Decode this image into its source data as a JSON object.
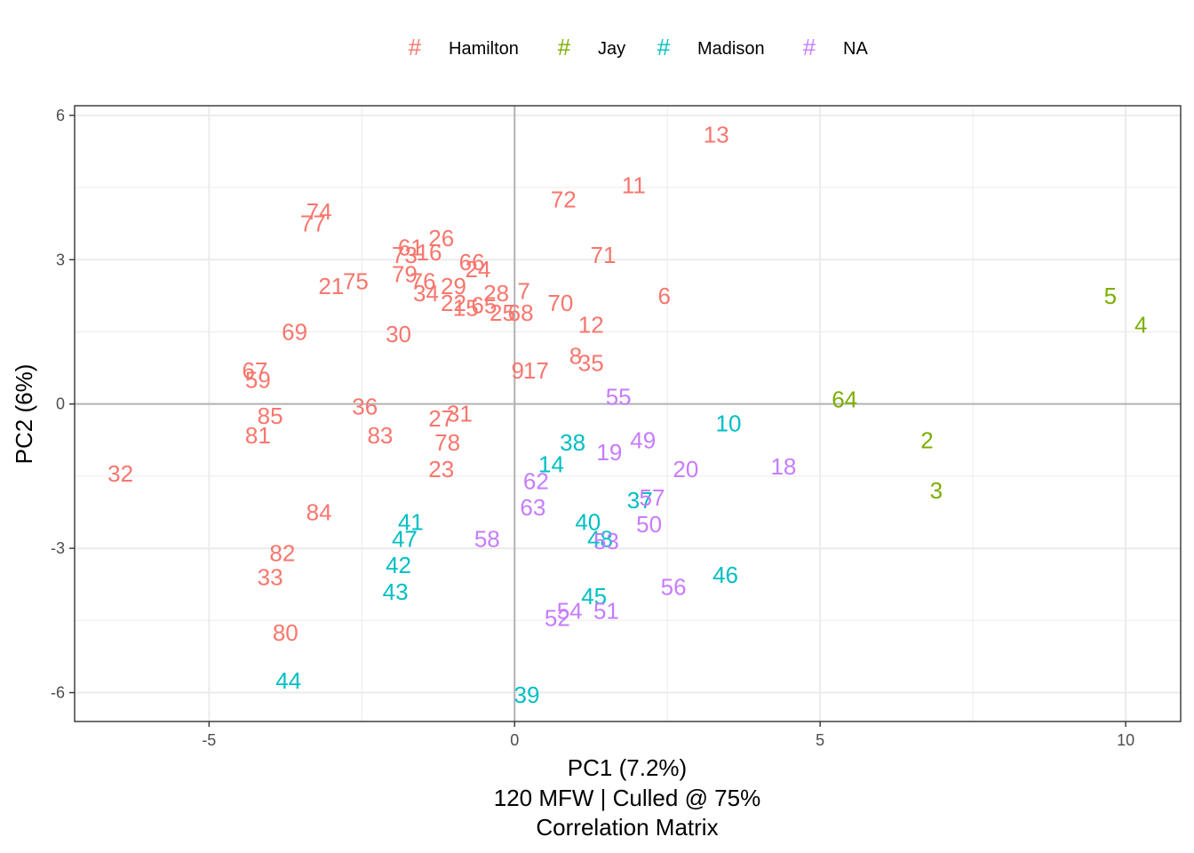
{
  "chart_data": {
    "type": "scatter",
    "xlabel": "PC1 (7.2%)",
    "subtitle_lines": [
      "120 MFW | Culled @ 75%",
      "Correlation Matrix"
    ],
    "ylabel": "PC2 (6%)",
    "xlim": [
      -7.2,
      10.9
    ],
    "ylim": [
      -6.6,
      6.2
    ],
    "x_ticks": [
      -5,
      0,
      5,
      10
    ],
    "x_tick_labels": [
      "-5",
      "0",
      "5",
      "10"
    ],
    "y_ticks": [
      -6,
      -3,
      0,
      3,
      6
    ],
    "y_tick_labels": [
      "-6",
      "-3",
      "0",
      "3",
      "6"
    ],
    "grid": true,
    "zero_lines": true,
    "legend": {
      "position": "top",
      "key_glyph": "#",
      "items": [
        {
          "name": "Hamilton",
          "color": "#F8766D"
        },
        {
          "name": "Jay",
          "color": "#7CAE00"
        },
        {
          "name": "Madison",
          "color": "#00BFC4"
        },
        {
          "name": "NA",
          "color": "#C77CFF"
        }
      ]
    },
    "series": [
      {
        "name": "Hamilton",
        "color": "#F8766D",
        "points": [
          {
            "label": "13",
            "x": 3.3,
            "y": 5.6
          },
          {
            "label": "11",
            "x": 1.95,
            "y": 4.55
          },
          {
            "label": "72",
            "x": 0.8,
            "y": 4.25
          },
          {
            "label": "74",
            "x": -3.2,
            "y": 4.0
          },
          {
            "label": "77",
            "x": -3.3,
            "y": 3.75
          },
          {
            "label": "61",
            "x": -1.7,
            "y": 3.25
          },
          {
            "label": "26",
            "x": -1.2,
            "y": 3.45
          },
          {
            "label": "73",
            "x": -1.8,
            "y": 3.1
          },
          {
            "label": "16",
            "x": -1.4,
            "y": 3.15
          },
          {
            "label": "71",
            "x": 1.45,
            "y": 3.1
          },
          {
            "label": "66",
            "x": -0.7,
            "y": 2.95
          },
          {
            "label": "24",
            "x": -0.6,
            "y": 2.8
          },
          {
            "label": "79",
            "x": -1.8,
            "y": 2.7
          },
          {
            "label": "75",
            "x": -2.6,
            "y": 2.55
          },
          {
            "label": "21",
            "x": -3.0,
            "y": 2.45
          },
          {
            "label": "76",
            "x": -1.5,
            "y": 2.55
          },
          {
            "label": "34",
            "x": -1.45,
            "y": 2.3
          },
          {
            "label": "29",
            "x": -1.0,
            "y": 2.45
          },
          {
            "label": "28",
            "x": -0.3,
            "y": 2.3
          },
          {
            "label": "7",
            "x": 0.15,
            "y": 2.35
          },
          {
            "label": "6",
            "x": 2.45,
            "y": 2.25
          },
          {
            "label": "22",
            "x": -1.0,
            "y": 2.1
          },
          {
            "label": "15",
            "x": -0.8,
            "y": 2.0
          },
          {
            "label": "65",
            "x": -0.5,
            "y": 2.05
          },
          {
            "label": "25",
            "x": -0.2,
            "y": 1.9
          },
          {
            "label": "68",
            "x": 0.1,
            "y": 1.9
          },
          {
            "label": "70",
            "x": 0.75,
            "y": 2.1
          },
          {
            "label": "12",
            "x": 1.25,
            "y": 1.65
          },
          {
            "label": "69",
            "x": -3.6,
            "y": 1.5
          },
          {
            "label": "30",
            "x": -1.9,
            "y": 1.45
          },
          {
            "label": "8",
            "x": 1.0,
            "y": 1.0
          },
          {
            "label": "35",
            "x": 1.25,
            "y": 0.85
          },
          {
            "label": "9",
            "x": 0.05,
            "y": 0.7
          },
          {
            "label": "17",
            "x": 0.35,
            "y": 0.7
          },
          {
            "label": "67",
            "x": -4.25,
            "y": 0.7
          },
          {
            "label": "59",
            "x": -4.2,
            "y": 0.5
          },
          {
            "label": "36",
            "x": -2.45,
            "y": -0.05
          },
          {
            "label": "31",
            "x": -0.9,
            "y": -0.2
          },
          {
            "label": "27",
            "x": -1.2,
            "y": -0.3
          },
          {
            "label": "85",
            "x": -4.0,
            "y": -0.25
          },
          {
            "label": "81",
            "x": -4.2,
            "y": -0.65
          },
          {
            "label": "83",
            "x": -2.2,
            "y": -0.65
          },
          {
            "label": "78",
            "x": -1.1,
            "y": -0.8
          },
          {
            "label": "23",
            "x": -1.2,
            "y": -1.35
          },
          {
            "label": "32",
            "x": -6.45,
            "y": -1.45
          },
          {
            "label": "84",
            "x": -3.2,
            "y": -2.25
          },
          {
            "label": "82",
            "x": -3.8,
            "y": -3.1
          },
          {
            "label": "33",
            "x": -4.0,
            "y": -3.6
          },
          {
            "label": "80",
            "x": -3.75,
            "y": -4.75
          }
        ]
      },
      {
        "name": "Jay",
        "color": "#7CAE00",
        "points": [
          {
            "label": "5",
            "x": 9.75,
            "y": 2.25
          },
          {
            "label": "4",
            "x": 10.25,
            "y": 1.65
          },
          {
            "label": "64",
            "x": 5.4,
            "y": 0.1
          },
          {
            "label": "2",
            "x": 6.75,
            "y": -0.75
          },
          {
            "label": "3",
            "x": 6.9,
            "y": -1.8
          }
        ]
      },
      {
        "name": "Madison",
        "color": "#00BFC4",
        "points": [
          {
            "label": "10",
            "x": 3.5,
            "y": -0.4
          },
          {
            "label": "38",
            "x": 0.95,
            "y": -0.8
          },
          {
            "label": "14",
            "x": 0.6,
            "y": -1.25
          },
          {
            "label": "37",
            "x": 2.05,
            "y": -2.0
          },
          {
            "label": "41",
            "x": -1.7,
            "y": -2.45
          },
          {
            "label": "47",
            "x": -1.8,
            "y": -2.8
          },
          {
            "label": "40",
            "x": 1.2,
            "y": -2.45
          },
          {
            "label": "48",
            "x": 1.4,
            "y": -2.8
          },
          {
            "label": "42",
            "x": -1.9,
            "y": -3.35
          },
          {
            "label": "46",
            "x": 3.45,
            "y": -3.55
          },
          {
            "label": "43",
            "x": -1.95,
            "y": -3.9
          },
          {
            "label": "45",
            "x": 1.3,
            "y": -4.0
          },
          {
            "label": "44",
            "x": -3.7,
            "y": -5.75
          },
          {
            "label": "39",
            "x": 0.2,
            "y": -6.05
          }
        ]
      },
      {
        "name": "NA",
        "color": "#C77CFF",
        "points": [
          {
            "label": "55",
            "x": 1.7,
            "y": 0.15
          },
          {
            "label": "19",
            "x": 1.55,
            "y": -1.0
          },
          {
            "label": "49",
            "x": 2.1,
            "y": -0.75
          },
          {
            "label": "20",
            "x": 2.8,
            "y": -1.35
          },
          {
            "label": "18",
            "x": 4.4,
            "y": -1.3
          },
          {
            "label": "62",
            "x": 0.35,
            "y": -1.6
          },
          {
            "label": "63",
            "x": 0.3,
            "y": -2.15
          },
          {
            "label": "57",
            "x": 2.25,
            "y": -1.95
          },
          {
            "label": "50",
            "x": 2.2,
            "y": -2.5
          },
          {
            "label": "58",
            "x": -0.45,
            "y": -2.8
          },
          {
            "label": "53",
            "x": 1.5,
            "y": -2.85
          },
          {
            "label": "56",
            "x": 2.6,
            "y": -3.8
          },
          {
            "label": "54",
            "x": 0.9,
            "y": -4.3
          },
          {
            "label": "51",
            "x": 1.5,
            "y": -4.3
          },
          {
            "label": "52",
            "x": 0.7,
            "y": -4.45
          }
        ]
      }
    ]
  }
}
